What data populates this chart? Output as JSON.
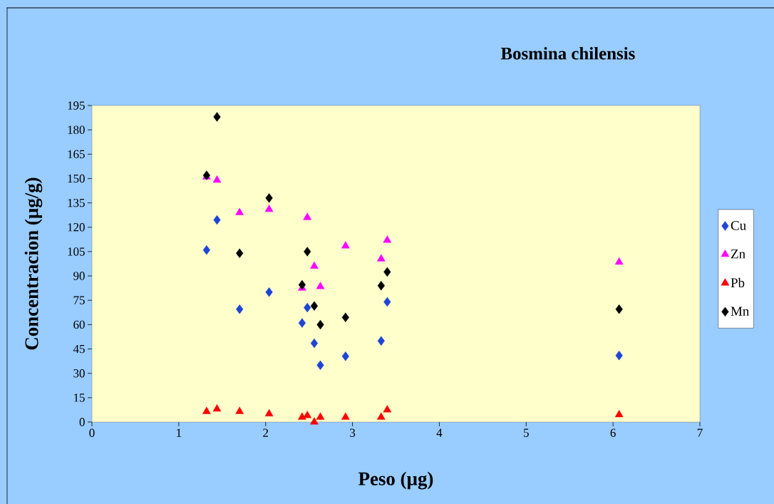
{
  "chart_data": {
    "type": "scatter",
    "title": "Bosmina chilensis",
    "xlabel": "Peso (µg)",
    "ylabel": "Concentracion (µg/g)",
    "xlim": [
      0,
      7
    ],
    "xticks": [
      0,
      1,
      2,
      3,
      4,
      5,
      6,
      7
    ],
    "ylim": [
      0,
      195
    ],
    "yticks": [
      0,
      15,
      30,
      45,
      60,
      75,
      90,
      105,
      120,
      135,
      150,
      165,
      180,
      195
    ],
    "legend": "right",
    "grid": false,
    "x": [
      1.32,
      1.44,
      1.7,
      2.04,
      2.42,
      2.48,
      2.56,
      2.63,
      2.92,
      3.33,
      3.4,
      6.07
    ],
    "series": [
      {
        "name": "Cu",
        "color": "#1f44d6",
        "marker": "diamond",
        "values": [
          106,
          124.5,
          69.5,
          80,
          61,
          70.5,
          48.5,
          35,
          40.5,
          50,
          74,
          41
        ]
      },
      {
        "name": "Zn",
        "color": "#ff00ff",
        "marker": "triangle",
        "values": [
          151,
          149,
          129,
          131,
          82.5,
          126,
          96,
          83.5,
          108.5,
          100.5,
          112,
          98.5
        ]
      },
      {
        "name": "Pb",
        "color": "#ff0000",
        "marker": "triangle",
        "values": [
          6.5,
          8,
          6.5,
          5,
          3,
          4,
          0,
          3,
          3,
          3,
          7.5,
          4.5
        ]
      },
      {
        "name": "Mn",
        "color": "#000000",
        "marker": "diamond",
        "values": [
          152,
          188,
          104,
          138,
          84.5,
          105,
          71.5,
          60,
          64.5,
          84,
          92.5,
          69.5
        ]
      }
    ]
  }
}
